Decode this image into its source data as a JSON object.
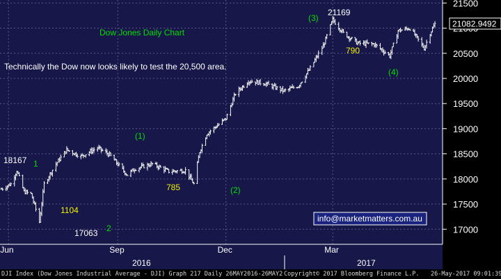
{
  "chart_data": {
    "type": "ohlc",
    "title": "Dow Jones Daily Chart",
    "subtitle": "Technically the Dow now looks likely to test the 20,500 area.",
    "ylim": [
      16700,
      21560
    ],
    "y_ticks": [
      17000,
      17500,
      18000,
      18500,
      19000,
      19500,
      20000,
      20500,
      21000,
      21500
    ],
    "x_tick_labels": [
      "Jun",
      "Sep",
      "Dec",
      "Mar"
    ],
    "year_labels": [
      "2016",
      "2017"
    ],
    "last_price": "21082.9492",
    "price_path": [
      {
        "x": "2016-05-26",
        "y": 17800
      },
      {
        "x": "2016-06-03",
        "y": 17900
      },
      {
        "x": "2016-06-08",
        "y": 18167
      },
      {
        "x": "2016-06-14",
        "y": 17750
      },
      {
        "x": "2016-06-20",
        "y": 17700
      },
      {
        "x": "2016-06-24",
        "y": 17400
      },
      {
        "x": "2016-06-27",
        "y": 17140
      },
      {
        "x": "2016-07-01",
        "y": 17900
      },
      {
        "x": "2016-07-11",
        "y": 18300
      },
      {
        "x": "2016-07-20",
        "y": 18580
      },
      {
        "x": "2016-08-01",
        "y": 18450
      },
      {
        "x": "2016-08-15",
        "y": 18620
      },
      {
        "x": "2016-08-25",
        "y": 18480
      },
      {
        "x": "2016-09-09",
        "y": 18080
      },
      {
        "x": "2016-09-15",
        "y": 18200
      },
      {
        "x": "2016-09-30",
        "y": 18300
      },
      {
        "x": "2016-10-14",
        "y": 18150
      },
      {
        "x": "2016-10-28",
        "y": 18170
      },
      {
        "x": "2016-11-04",
        "y": 17900
      },
      {
        "x": "2016-11-09",
        "y": 18550
      },
      {
        "x": "2016-11-15",
        "y": 18900
      },
      {
        "x": "2016-12-01",
        "y": 19200
      },
      {
        "x": "2016-12-09",
        "y": 19700
      },
      {
        "x": "2016-12-20",
        "y": 19950
      },
      {
        "x": "2017-01-03",
        "y": 19900
      },
      {
        "x": "2017-01-19",
        "y": 19750
      },
      {
        "x": "2017-01-31",
        "y": 19850
      },
      {
        "x": "2017-02-10",
        "y": 20200
      },
      {
        "x": "2017-02-21",
        "y": 20650
      },
      {
        "x": "2017-03-01",
        "y": 21169
      },
      {
        "x": "2017-03-10",
        "y": 20900
      },
      {
        "x": "2017-03-22",
        "y": 20700
      },
      {
        "x": "2017-04-05",
        "y": 20680
      },
      {
        "x": "2017-04-18",
        "y": 20450
      },
      {
        "x": "2017-04-25",
        "y": 20950
      },
      {
        "x": "2017-05-05",
        "y": 21000
      },
      {
        "x": "2017-05-17",
        "y": 20600
      },
      {
        "x": "2017-05-22",
        "y": 20900
      },
      {
        "x": "2017-05-26",
        "y": 21083
      }
    ],
    "annotations": [
      {
        "text": "18167",
        "color": "#ffffff"
      },
      {
        "text": "1",
        "color": "#00e000"
      },
      {
        "text": "1104",
        "color": "#f0f000"
      },
      {
        "text": "17063",
        "color": "#ffffff"
      },
      {
        "text": "2",
        "color": "#00e000"
      },
      {
        "text": "(1)",
        "color": "#00e000"
      },
      {
        "text": "785",
        "color": "#f0f000"
      },
      {
        "text": "(2)",
        "color": "#00e000"
      },
      {
        "text": "(3)",
        "color": "#00e000"
      },
      {
        "text": "21169",
        "color": "#ffffff"
      },
      {
        "text": "790",
        "color": "#f0f000"
      },
      {
        "text": "(4)",
        "color": "#00e000"
      }
    ],
    "watermark": "info@marketmatters.com.au",
    "grid": true
  },
  "footer": {
    "left": "DJI Index (Dow Jones Industrial Average - DJI) Graph 217  Daily 26MAY2016-26MAY2",
    "center": "Copyright© 2017 Bloomberg Finance L.P.",
    "right": "26-May-2017 09:01:39"
  },
  "colors": {
    "plot_bg": "#17174a",
    "grid": "#5a5a84",
    "bars": "#ffffff",
    "title": "#00e000",
    "box_bg": "#1a237e"
  }
}
